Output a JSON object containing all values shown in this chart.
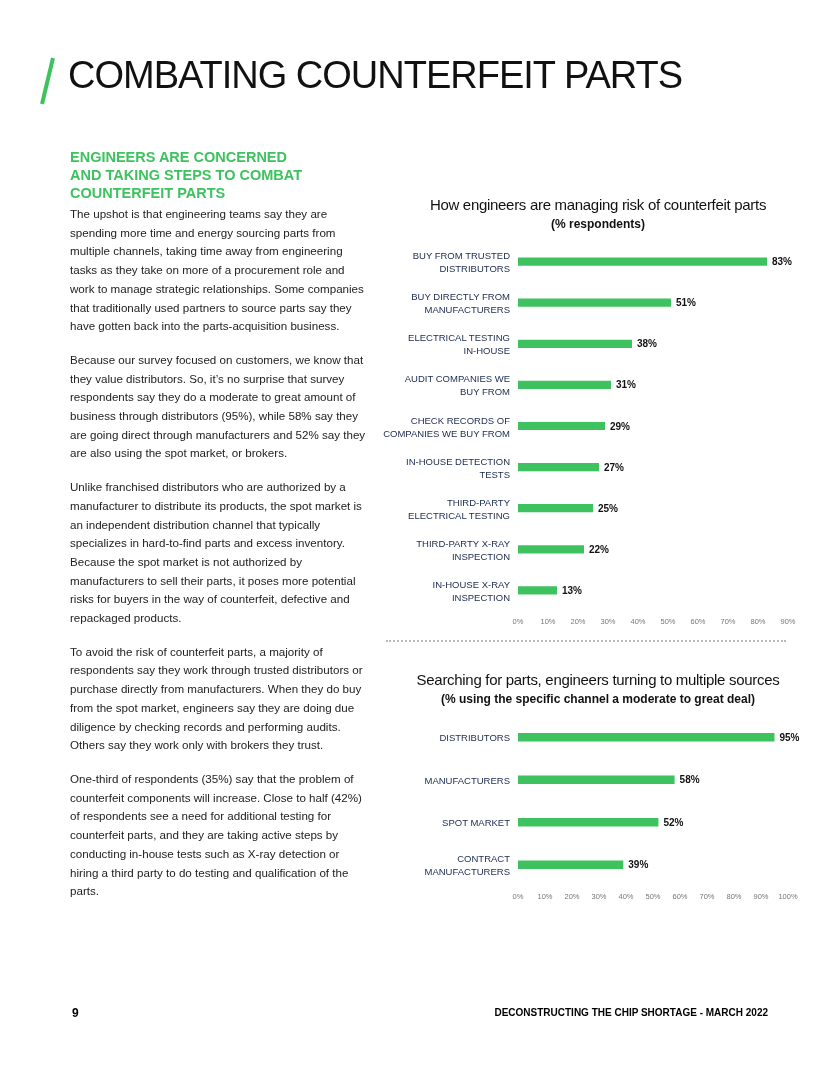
{
  "chart_data": [
    {
      "type": "other",
      "title": "COMBATING COUNTERFEIT PARTS",
      "subtitle": "ENGINEERS ARE CONCERNED AND TAKING STEPS TO COMBAT COUNTERFEIT PARTS",
      "annotations": [
        "The upshot is that engineering teams say they are spending more time and energy sourcing parts from multiple channels, taking time away from engineering tasks as they take on more of a procurement role and work to manage strategic relationships. Some companies that traditionally used partners to source parts say they have gotten back into the parts-acquisition business.",
        "Because our survey focused on customers, we know that they value distributors. So, it’s no surprise that survey respondents say they do a moderate to great amount of business through distributors (95%), while 58% say they are going direct through manufacturers and 52% say they are also using the spot market, or brokers.",
        "Unlike franchised distributors who are authorized by a manufacturer to distribute its products, the spot market is an independent distribution channel that typically specializes in hard-to-find parts and excess inventory. Because the spot market is not authorized by manufacturers to sell their parts, it poses more potential risks for buyers in the way of counterfeit, defective and repackaged products.",
        "To avoid the risk of counterfeit parts, a majority of respondents say they work through trusted distributors or purchase directly from manufacturers. When they do buy from the spot market, engineers say they are doing due diligence by checking records and performing audits. Others say they work only with brokers they trust.",
        "One-third of respondents (35%) say that the problem of counterfeit components will increase. Close to half (42%) of respondents see a need for additional testing for counterfeit parts, and they are taking active steps by conducting in-house tests such as X-ray detection or hiring a third party to do testing and qualification of the parts.",
        "9",
        "DECONSTRUCTING THE CHIP SHORTAGE - MARCH 2022"
      ]
    },
    {
      "type": "bar",
      "orientation": "horizontal",
      "title": "How engineers are managing risk of counterfeit parts",
      "subtitle": "(% respondents)",
      "categories": [
        "BUY FROM TRUSTED DISTRIBUTORS",
        "BUY DIRECTLY FROM MANUFACTURERS",
        "ELECTRICAL TESTING IN-HOUSE",
        "AUDIT COMPANIES WE BUY FROM",
        "CHECK RECORDS OF COMPANIES WE BUY FROM",
        "IN-HOUSE DETECTION TESTS",
        "THIRD-PARTY ELECTRICAL TESTING",
        "THIRD-PARTY X-RAY INSPECTION",
        "IN-HOUSE X-RAY INSPECTION"
      ],
      "values": [
        83,
        51,
        38,
        31,
        29,
        27,
        25,
        22,
        13
      ],
      "value_labels": [
        "83%",
        "51%",
        "38%",
        "31%",
        "29%",
        "27%",
        "25%",
        "22%",
        "13%"
      ],
      "color": "#3ec25f",
      "xlim": [
        0,
        90
      ],
      "xticks": [
        {
          "value": 0,
          "label": "0%"
        },
        {
          "value": 10,
          "label": "10%"
        },
        {
          "value": 20,
          "label": "20%"
        },
        {
          "value": 30,
          "label": "30%"
        },
        {
          "value": 40,
          "label": "40%"
        },
        {
          "value": 50,
          "label": "50%"
        },
        {
          "value": 60,
          "label": "60%"
        },
        {
          "value": 70,
          "label": "70%"
        },
        {
          "value": 80,
          "label": "80%"
        },
        {
          "value": 90,
          "label": "90%"
        }
      ]
    },
    {
      "type": "bar",
      "orientation": "horizontal",
      "title": "Searching for parts, engineers turning to multiple sources",
      "subtitle": "(% using the specific channel a moderate to great deal)",
      "categories": [
        "DISTRIBUTORS",
        "MANUFACTURERS",
        "SPOT MARKET",
        "CONTRACT MANUFACTURERS"
      ],
      "values": [
        95,
        58,
        52,
        39
      ],
      "value_labels": [
        "95%",
        "58%",
        "52%",
        "39%"
      ],
      "color": "#3ec25f",
      "xlim": [
        0,
        100
      ],
      "xticks": [
        {
          "value": 0,
          "label": "0%"
        },
        {
          "value": 10,
          "label": "10%"
        },
        {
          "value": 20,
          "label": "20%"
        },
        {
          "value": 30,
          "label": "30%"
        },
        {
          "value": 40,
          "label": "40%"
        },
        {
          "value": 50,
          "label": "50%"
        },
        {
          "value": 60,
          "label": "60%"
        },
        {
          "value": 70,
          "label": "70%"
        },
        {
          "value": 80,
          "label": "80%"
        },
        {
          "value": 90,
          "label": "90%"
        },
        {
          "value": 100,
          "label": "100%"
        }
      ]
    }
  ]
}
